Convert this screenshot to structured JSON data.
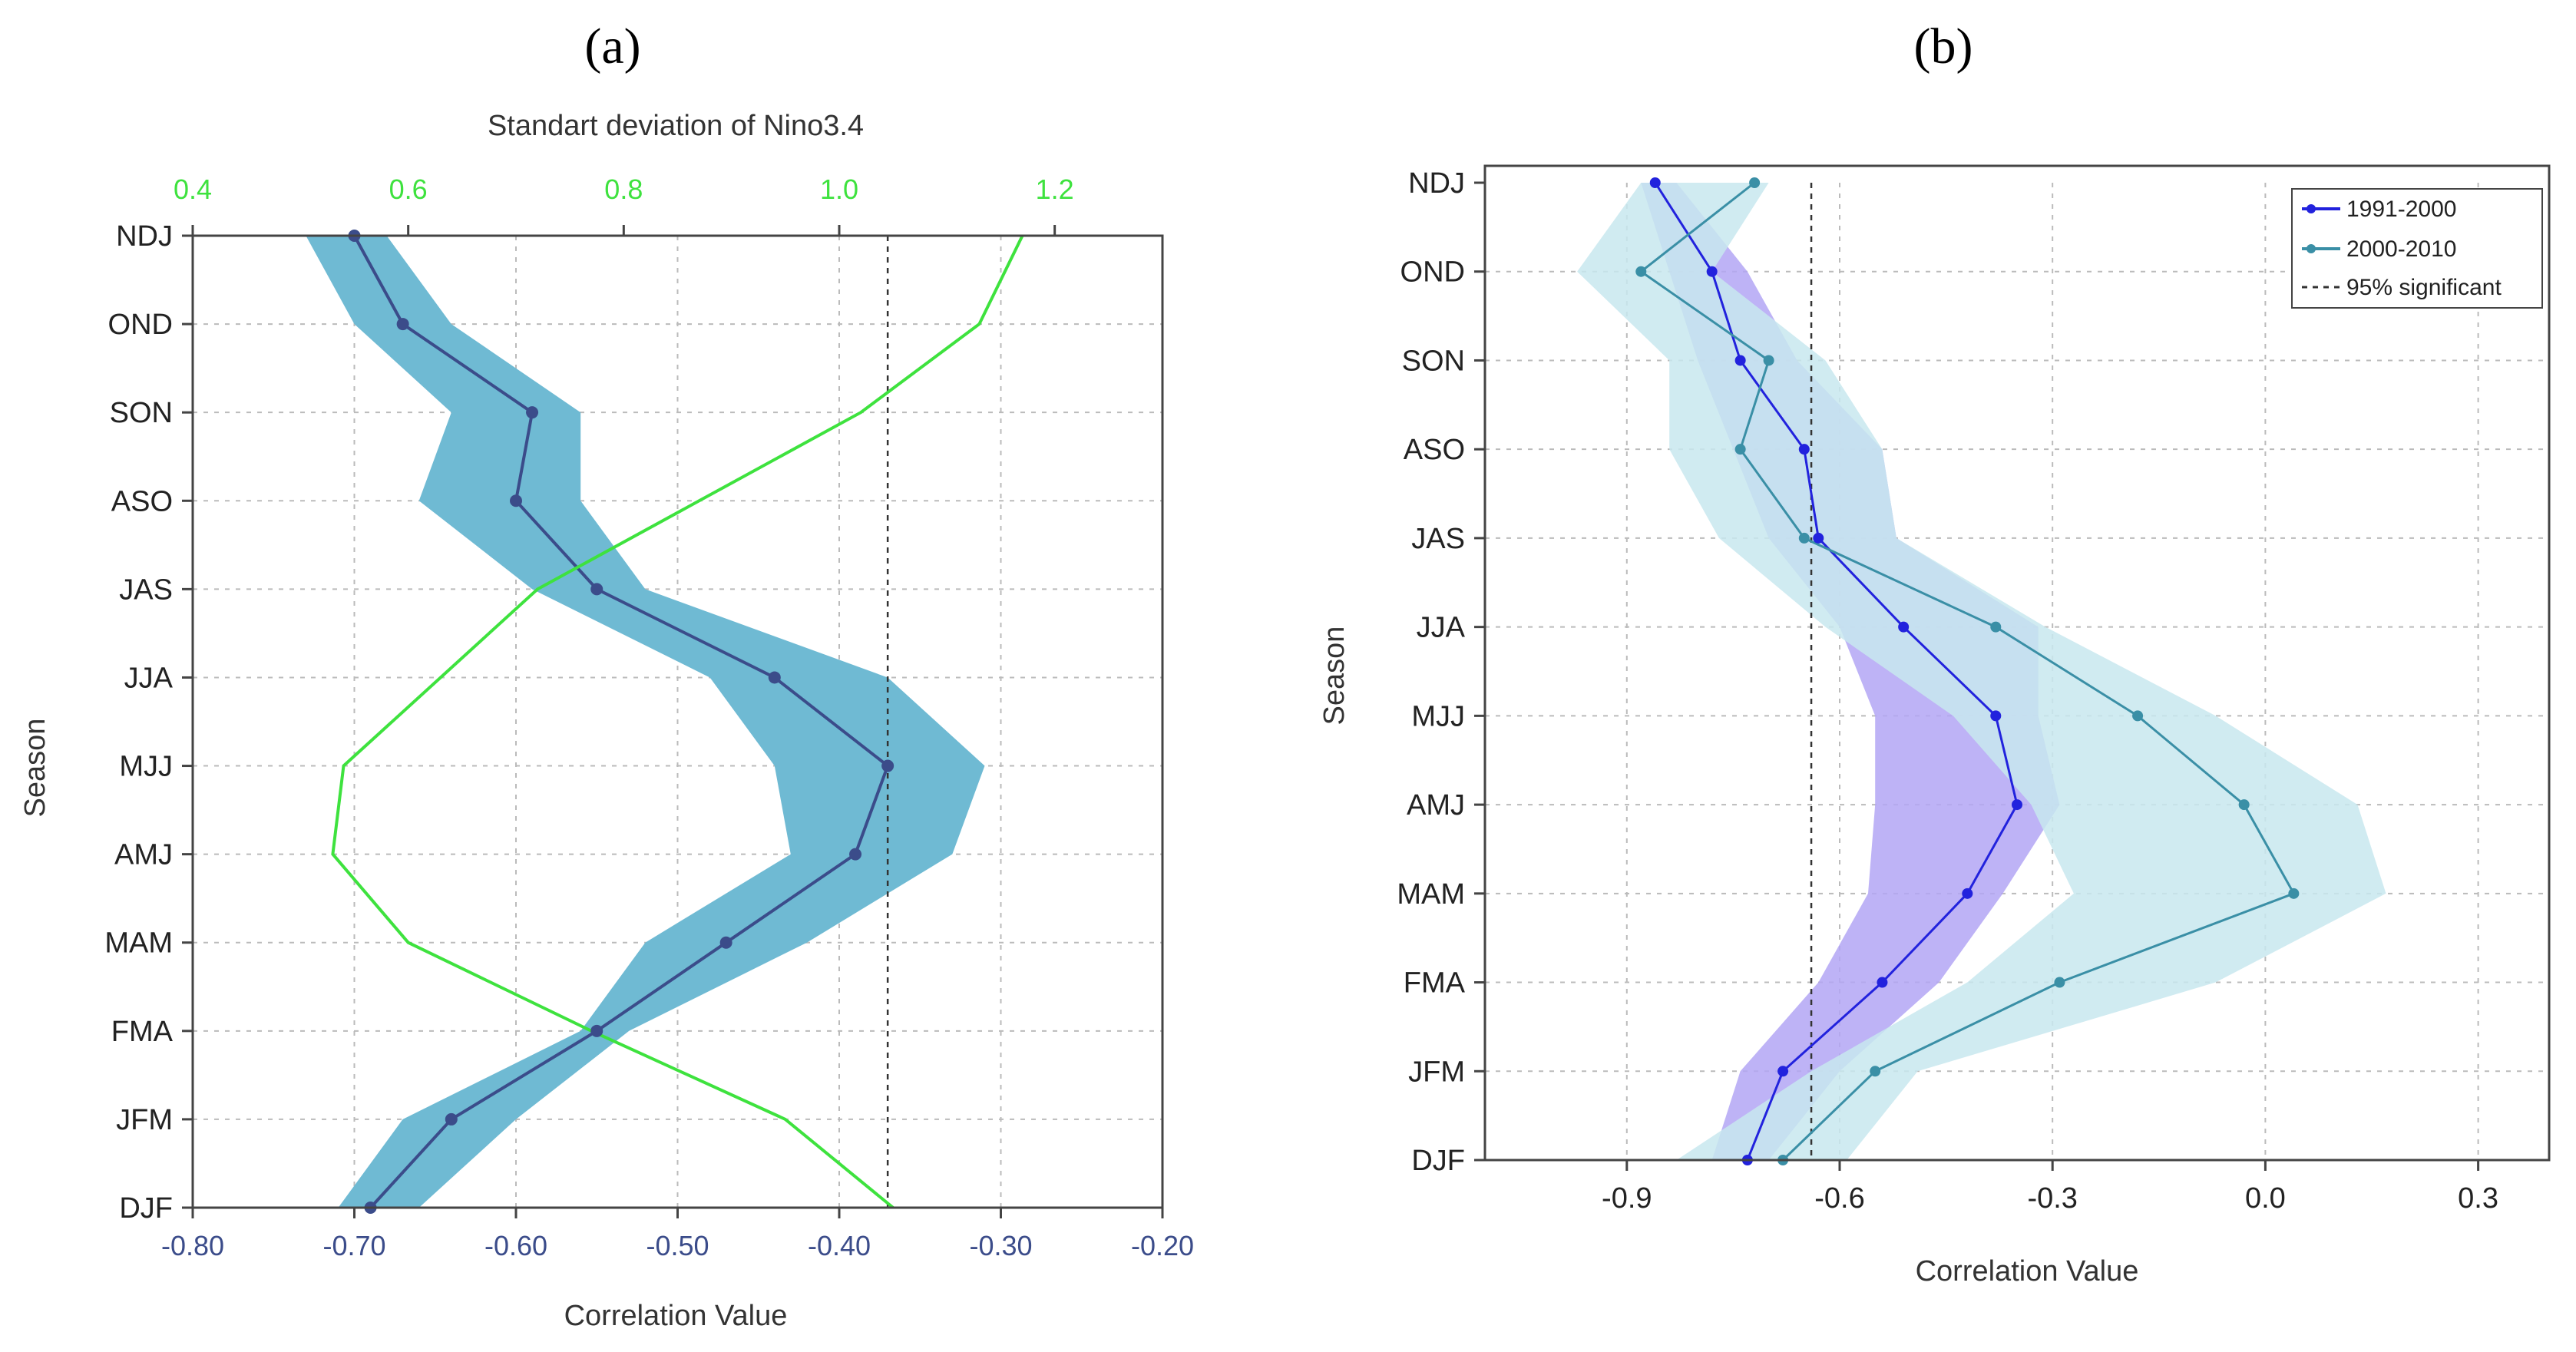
{
  "chart_data": [
    {
      "type": "line",
      "panel_label": "(a)",
      "title": "",
      "top_axis_label": "Standart deviation of Nino3.4",
      "xlabel": "Correlation Value",
      "ylabel": "Season",
      "categories": [
        "NDJ",
        "OND",
        "SON",
        "ASO",
        "JAS",
        "JJA",
        "MJJ",
        "AMJ",
        "MAM",
        "FMA",
        "JFM",
        "DJF"
      ],
      "xlim": [
        -0.8,
        -0.2
      ],
      "xticks": [
        -0.8,
        -0.7,
        -0.6,
        -0.5,
        -0.4,
        -0.3,
        -0.2
      ],
      "xtick_labels": [
        "-0.80",
        "-0.70",
        "-0.60",
        "-0.50",
        "-0.40",
        "-0.30",
        "-0.20"
      ],
      "top_xlim": [
        0.4,
        1.3
      ],
      "top_xticks": [
        0.4,
        0.6,
        0.8,
        1.0,
        1.2
      ],
      "top_xtick_labels": [
        "0.4",
        "0.6",
        "0.8",
        "1.0",
        "1.2"
      ],
      "significance_x": -0.37,
      "series": [
        {
          "name": "Correlation",
          "color": "#3b4c8a",
          "values": [
            -0.7,
            -0.67,
            -0.59,
            -0.6,
            -0.55,
            -0.44,
            -0.37,
            -0.39,
            -0.47,
            -0.55,
            -0.64,
            -0.69
          ],
          "band_low": [
            -0.73,
            -0.7,
            -0.64,
            -0.66,
            -0.59,
            -0.48,
            -0.44,
            -0.43,
            -0.52,
            -0.56,
            -0.67,
            -0.71
          ],
          "band_high": [
            -0.68,
            -0.64,
            -0.56,
            -0.56,
            -0.52,
            -0.37,
            -0.31,
            -0.33,
            -0.42,
            -0.53,
            -0.6,
            -0.66
          ],
          "band_color": "#6fbad3"
        },
        {
          "name": "Standart deviation of Nino3.4",
          "axis": "top",
          "color": "#3ee23e",
          "values": [
            1.17,
            1.13,
            1.02,
            0.87,
            0.72,
            0.63,
            0.54,
            0.53,
            0.6,
            0.77,
            0.95,
            1.05
          ]
        }
      ]
    },
    {
      "type": "line",
      "panel_label": "(b)",
      "title": "",
      "xlabel": "Correlation Value",
      "ylabel": "Season",
      "categories": [
        "NDJ",
        "OND",
        "SON",
        "ASO",
        "JAS",
        "JJA",
        "MJJ",
        "AMJ",
        "MAM",
        "FMA",
        "JFM",
        "DJF"
      ],
      "xlim": [
        -1.1,
        0.4
      ],
      "xticks": [
        -0.9,
        -0.6,
        -0.3,
        0.0,
        0.3
      ],
      "xtick_labels": [
        "-0.9",
        "-0.6",
        "-0.3",
        "0.0",
        "0.3"
      ],
      "significance_x": -0.64,
      "legend": [
        "1991-2000",
        "2000-2010",
        "95% significant"
      ],
      "legend_position": "top-right",
      "series": [
        {
          "name": "1991-2000",
          "color": "#2222dd",
          "values": [
            -0.86,
            -0.78,
            -0.74,
            -0.65,
            -0.63,
            -0.51,
            -0.38,
            -0.35,
            -0.42,
            -0.54,
            -0.68,
            -0.73
          ],
          "band_low": [
            -0.88,
            -0.84,
            -0.8,
            -0.75,
            -0.7,
            -0.6,
            -0.55,
            -0.55,
            -0.56,
            -0.63,
            -0.74,
            -0.78
          ],
          "band_high": [
            -0.83,
            -0.73,
            -0.66,
            -0.54,
            -0.52,
            -0.32,
            -0.32,
            -0.29,
            -0.37,
            -0.46,
            -0.6,
            -0.7
          ],
          "band_color": "#b3a6f5"
        },
        {
          "name": "2000-2010",
          "color": "#3a8fa6",
          "values": [
            -0.72,
            -0.88,
            -0.7,
            -0.74,
            -0.65,
            -0.38,
            -0.18,
            -0.03,
            0.04,
            -0.29,
            -0.55,
            -0.68
          ],
          "band_low": [
            -0.88,
            -0.97,
            -0.84,
            -0.84,
            -0.77,
            -0.62,
            -0.44,
            -0.33,
            -0.27,
            -0.42,
            -0.64,
            -0.83
          ],
          "band_high": [
            -0.7,
            -0.78,
            -0.62,
            -0.54,
            -0.52,
            -0.31,
            -0.07,
            0.13,
            0.17,
            -0.07,
            -0.49,
            -0.59
          ],
          "band_color": "#c8e7ee"
        }
      ]
    }
  ]
}
